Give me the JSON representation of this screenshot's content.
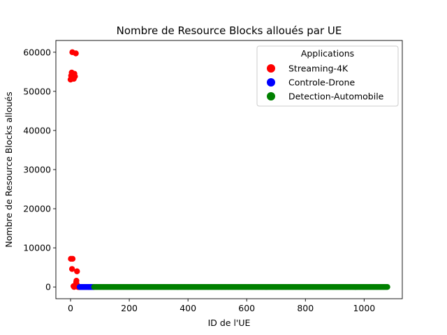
{
  "chart_data": {
    "type": "scatter",
    "title": "Nombre de Resource Blocks alloués par UE",
    "xlabel": "ID de l'UE",
    "ylabel": "Nombre de Resource Blocks alloués",
    "xlim": [
      -50,
      1130
    ],
    "ylim": [
      -3000,
      63000
    ],
    "xticks": [
      0,
      200,
      400,
      600,
      800,
      1000
    ],
    "yticks": [
      0,
      10000,
      20000,
      30000,
      40000,
      50000,
      60000
    ],
    "grid": false,
    "legend": {
      "title": "Applications",
      "placement": "top-right"
    },
    "series": [
      {
        "name": "Streaming-4K",
        "color": "#ff0000",
        "points": [
          [
            0,
            53000
          ],
          [
            1,
            7200
          ],
          [
            2,
            54000
          ],
          [
            3,
            53500
          ],
          [
            4,
            54800
          ],
          [
            5,
            4600
          ],
          [
            6,
            60000
          ],
          [
            7,
            7200
          ],
          [
            8,
            53300
          ],
          [
            9,
            54300
          ],
          [
            10,
            200
          ],
          [
            11,
            53200
          ],
          [
            12,
            0
          ],
          [
            13,
            54500
          ],
          [
            14,
            100
          ],
          [
            15,
            53800
          ],
          [
            16,
            300
          ],
          [
            17,
            400
          ],
          [
            18,
            59700
          ],
          [
            19,
            1100
          ],
          [
            20,
            1600
          ],
          [
            21,
            700
          ],
          [
            22,
            4000
          ],
          [
            23,
            200
          ],
          [
            24,
            100
          ],
          [
            25,
            0
          ],
          [
            26,
            50
          ],
          [
            27,
            0
          ],
          [
            28,
            0
          ],
          [
            29,
            0
          ],
          [
            30,
            0
          ]
        ]
      },
      {
        "name": "Controle-Drone",
        "color": "#0000ff",
        "range": {
          "start": 31,
          "end": 79,
          "step": 2,
          "value": 0
        }
      },
      {
        "name": "Detection-Automobile",
        "color": "#008000",
        "range": {
          "start": 80,
          "end": 1080,
          "step": 3,
          "value": 0
        }
      }
    ]
  }
}
